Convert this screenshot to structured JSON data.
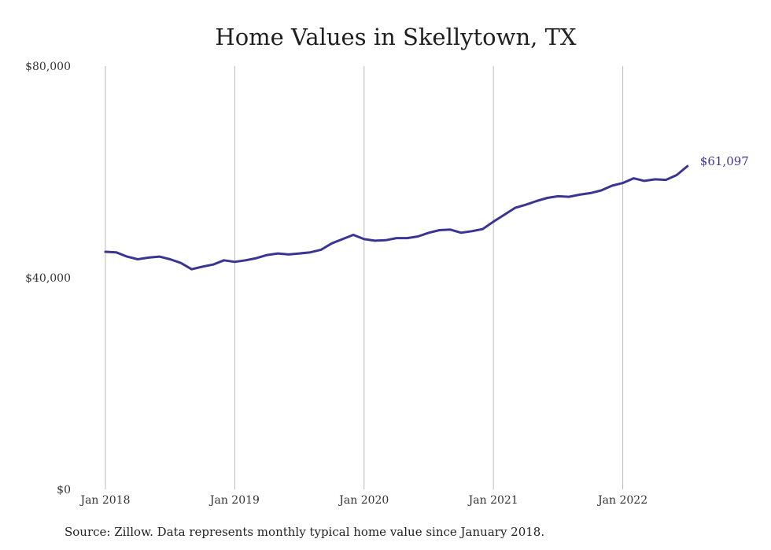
{
  "colors": {
    "line": "#3a3592",
    "grid": "#bbbbbb"
  },
  "chart_data": {
    "type": "line",
    "title": "Home Values in Skellytown, TX",
    "xlabel": "",
    "ylabel": "",
    "ylim": [
      0,
      80000
    ],
    "y_ticks": [
      {
        "value": 0,
        "label": "$0"
      },
      {
        "value": 40000,
        "label": "$40,000"
      },
      {
        "value": 80000,
        "label": "$80,000"
      }
    ],
    "x_ticks": [
      {
        "date": "2018-01",
        "label": "Jan 2018"
      },
      {
        "date": "2019-01",
        "label": "Jan 2019"
      },
      {
        "date": "2020-01",
        "label": "Jan 2020"
      },
      {
        "date": "2021-01",
        "label": "Jan 2021"
      },
      {
        "date": "2022-01",
        "label": "Jan 2022"
      }
    ],
    "x_range": [
      "2018-01",
      "2022-07"
    ],
    "grid": "vertical",
    "end_label": "$61,097",
    "series": [
      {
        "x": [
          "2018-01",
          "2018-02",
          "2018-03",
          "2018-04",
          "2018-05",
          "2018-06",
          "2018-07",
          "2018-08",
          "2018-09",
          "2018-10",
          "2018-11",
          "2018-12",
          "2019-01",
          "2019-02",
          "2019-03",
          "2019-04",
          "2019-05",
          "2019-06",
          "2019-07",
          "2019-08",
          "2019-09",
          "2019-10",
          "2019-11",
          "2019-12",
          "2020-01",
          "2020-02",
          "2020-03",
          "2020-04",
          "2020-05",
          "2020-06",
          "2020-07",
          "2020-08",
          "2020-09",
          "2020-10",
          "2020-11",
          "2020-12",
          "2021-01",
          "2021-02",
          "2021-03",
          "2021-04",
          "2021-05",
          "2021-06",
          "2021-07",
          "2021-08",
          "2021-09",
          "2021-10",
          "2021-11",
          "2021-12",
          "2022-01",
          "2022-02",
          "2022-03",
          "2022-04",
          "2022-05",
          "2022-06",
          "2022-07"
        ],
        "values": [
          44900,
          44800,
          44000,
          43500,
          43800,
          44000,
          43500,
          42800,
          41600,
          42100,
          42500,
          43300,
          43000,
          43300,
          43700,
          44300,
          44600,
          44400,
          44600,
          44800,
          45300,
          46500,
          47300,
          48100,
          47300,
          47000,
          47100,
          47500,
          47500,
          47800,
          48500,
          49000,
          49100,
          48500,
          48800,
          49200,
          50600,
          51900,
          53200,
          53800,
          54500,
          55100,
          55400,
          55300,
          55700,
          56000,
          56500,
          57400,
          57900,
          58800,
          58300,
          58600,
          58500,
          59400,
          61097
        ]
      }
    ]
  },
  "footer": {
    "source": "Source: Zillow. Data represents monthly typical home value since January 2018."
  }
}
